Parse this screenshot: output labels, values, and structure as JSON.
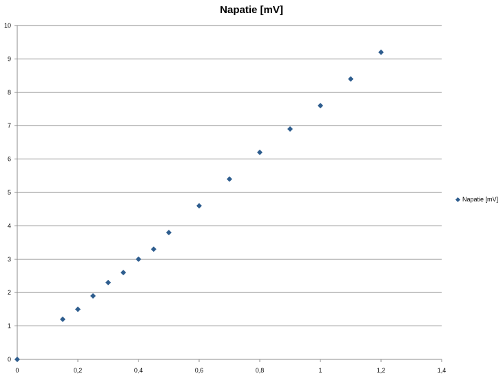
{
  "chart_data": {
    "type": "scatter",
    "title": "Napatie [mV]",
    "xlabel": "",
    "ylabel": "",
    "xlim": [
      0,
      1.4
    ],
    "ylim": [
      0,
      10
    ],
    "x_ticks": [
      "0",
      "0,2",
      "0,4",
      "0,6",
      "0,8",
      "1",
      "1,2",
      "1,4"
    ],
    "y_ticks": [
      "0",
      "1",
      "2",
      "3",
      "4",
      "5",
      "6",
      "7",
      "8",
      "9",
      "10"
    ],
    "grid": "horizontal",
    "legend_position": "right",
    "series": [
      {
        "name": "Napatie [mV]",
        "color": "#2e5d8e",
        "marker": "diamond",
        "x": [
          0,
          0.15,
          0.2,
          0.25,
          0.3,
          0.35,
          0.4,
          0.45,
          0.5,
          0.6,
          0.7,
          0.8,
          0.9,
          1.0,
          1.1,
          1.2
        ],
        "y": [
          0,
          1.2,
          1.5,
          1.9,
          2.3,
          2.6,
          3.0,
          3.3,
          3.8,
          4.6,
          5.4,
          6.2,
          6.9,
          7.6,
          8.4,
          9.2
        ]
      }
    ]
  }
}
